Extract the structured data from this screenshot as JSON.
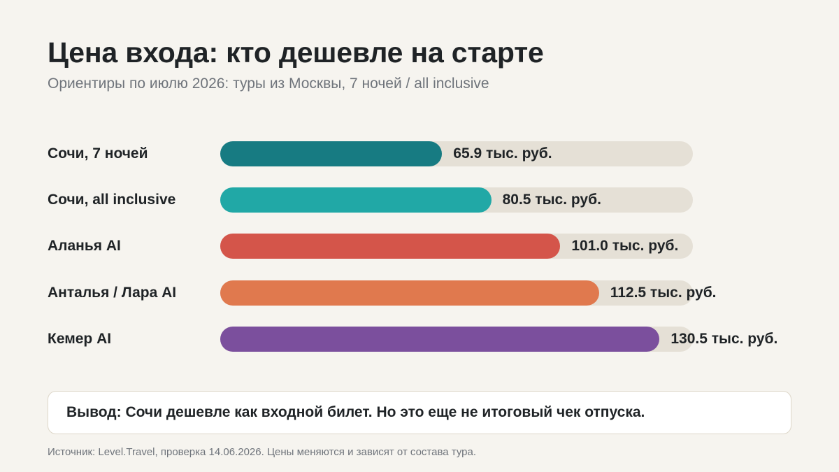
{
  "title": "Цена входа: кто дешевле на старте",
  "subtitle": "Ориентиры по июлю 2026: туры из Москвы, 7 ночей / all inclusive",
  "chart_data": {
    "type": "bar",
    "orientation": "horizontal",
    "title": "Цена входа: кто дешевле на старте",
    "subtitle": "Ориентиры по июлю 2026: туры из Москвы, 7 ночей / all inclusive",
    "unit": "тыс. руб.",
    "xlim": [
      0,
      140
    ],
    "grid": false,
    "categories": [
      "Сочи, 7 ночей",
      "Сочи, all inclusive",
      "Аланья AI",
      "Анталья / Лара AI",
      "Кемер AI"
    ],
    "values": [
      65.9,
      80.5,
      101.0,
      112.5,
      130.5
    ],
    "value_labels": [
      "65.9 тыс. руб.",
      "80.5 тыс. руб.",
      "101.0 тыс. руб.",
      "112.5 тыс. руб.",
      "130.5 тыс. руб."
    ],
    "colors": [
      "#177b82",
      "#21a8a6",
      "#d4554a",
      "#e0794e",
      "#7b4f9d"
    ],
    "track_color": "#e5e0d6"
  },
  "conclusion": "Вывод: Сочи дешевле как входной билет. Но это еще не итоговый чек отпуска.",
  "source": "Источник: Level.Travel, проверка 14.06.2026. Цены меняются и зависят от состава тура."
}
